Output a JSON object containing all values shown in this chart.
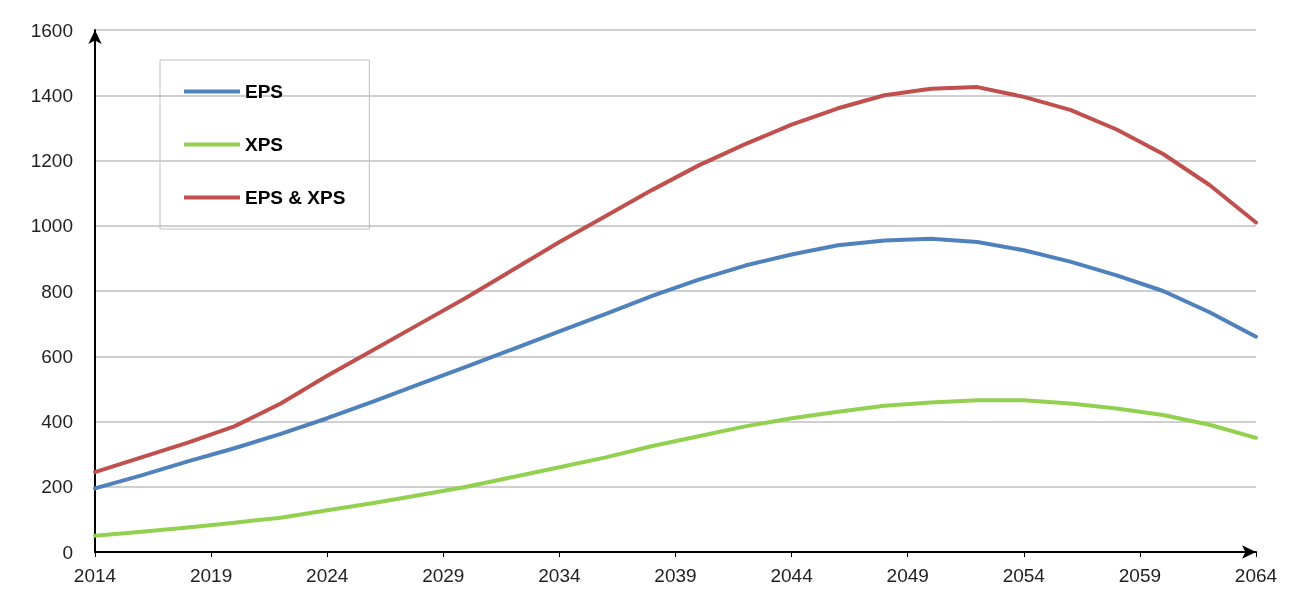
{
  "chart_data": {
    "type": "line",
    "x": [
      2014,
      2016,
      2018,
      2020,
      2022,
      2024,
      2026,
      2028,
      2030,
      2032,
      2034,
      2036,
      2038,
      2040,
      2042,
      2044,
      2046,
      2048,
      2050,
      2052,
      2054,
      2056,
      2058,
      2060,
      2062,
      2064
    ],
    "series": [
      {
        "name": "EPS",
        "color": "#4f81bd",
        "values": [
          195,
          235,
          278,
          318,
          362,
          410,
          462,
          515,
          568,
          622,
          676,
          730,
          785,
          835,
          878,
          912,
          940,
          955,
          960,
          950,
          925,
          890,
          848,
          800,
          735,
          660
        ]
      },
      {
        "name": "XPS",
        "color": "#92d050",
        "values": [
          50,
          62,
          75,
          90,
          105,
          128,
          150,
          175,
          200,
          230,
          260,
          290,
          325,
          355,
          385,
          410,
          430,
          448,
          458,
          465,
          465,
          455,
          440,
          420,
          390,
          350
        ]
      },
      {
        "name": "EPS & XPS",
        "color": "#c0504d",
        "values": [
          245,
          290,
          335,
          385,
          455,
          540,
          620,
          700,
          780,
          865,
          950,
          1030,
          1110,
          1185,
          1250,
          1310,
          1360,
          1400,
          1420,
          1425,
          1395,
          1355,
          1295,
          1220,
          1125,
          1010
        ]
      }
    ],
    "xlim": [
      2014,
      2064
    ],
    "xticks": [
      2014,
      2019,
      2024,
      2029,
      2034,
      2039,
      2044,
      2049,
      2054,
      2059,
      2064
    ],
    "ylim": [
      0,
      1600
    ],
    "yticks": [
      0,
      200,
      400,
      600,
      800,
      1000,
      1200,
      1400,
      1600
    ],
    "grid": "y",
    "legend": "top left",
    "marker": "none",
    "line_style": "solid"
  }
}
